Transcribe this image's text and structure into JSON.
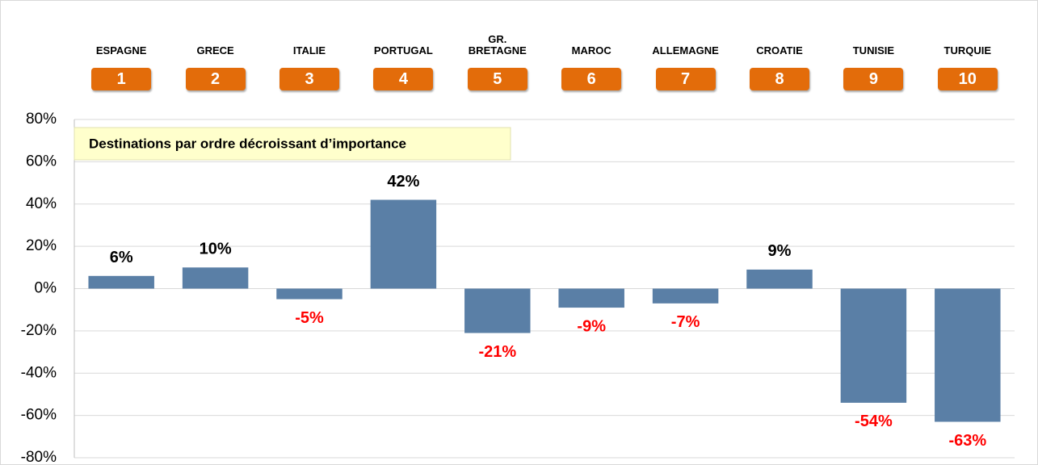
{
  "chart_data": {
    "type": "bar",
    "annotation": "Destinations par ordre décroissant d’importance",
    "categories": [
      "ESPAGNE",
      "GRECE",
      "ITALIE",
      "PORTUGAL",
      "GR. BRETAGNE",
      "MAROC",
      "ALLEMAGNE",
      "CROATIE",
      "TUNISIE",
      "TURQUIE"
    ],
    "ranks": [
      1,
      2,
      3,
      4,
      5,
      6,
      7,
      8,
      9,
      10
    ],
    "values": [
      6,
      10,
      -5,
      42,
      -21,
      -9,
      -7,
      9,
      -54,
      -63
    ],
    "value_labels": [
      "6%",
      "10%",
      "-5%",
      "42%",
      "-21%",
      "-9%",
      "-7%",
      "9%",
      "-54%",
      "-63%"
    ],
    "color": "#5a7fa6",
    "positive_label_color": "#000000",
    "negative_label_color": "#ff0000",
    "rank_color": "#e36c0a",
    "ylim": [
      -80,
      80
    ],
    "yticks": [
      {
        "value": -80,
        "label": "-80%"
      },
      {
        "value": -60,
        "label": "-60%"
      },
      {
        "value": -40,
        "label": "-40%"
      },
      {
        "value": -20,
        "label": "-20%"
      },
      {
        "value": 0,
        "label": "0%"
      },
      {
        "value": 20,
        "label": "20%"
      },
      {
        "value": 40,
        "label": "40%"
      },
      {
        "value": 60,
        "label": "60%"
      },
      {
        "value": 80,
        "label": "80%"
      }
    ],
    "grid": true
  }
}
